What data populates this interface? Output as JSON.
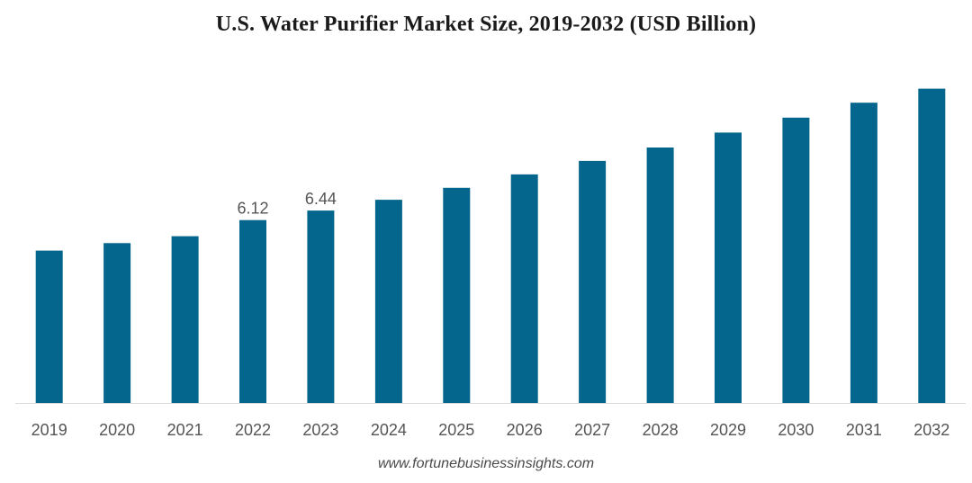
{
  "chart_data": {
    "type": "bar",
    "title": "U.S. Water Purifier Market Size, 2019-2032 (USD Billion)",
    "xlabel": "",
    "ylabel": "",
    "categories": [
      "2019",
      "2020",
      "2021",
      "2022",
      "2023",
      "2024",
      "2025",
      "2026",
      "2027",
      "2028",
      "2029",
      "2030",
      "2031",
      "2032"
    ],
    "values": [
      5.1,
      5.35,
      5.58,
      6.12,
      6.44,
      6.8,
      7.2,
      7.65,
      8.1,
      8.55,
      9.05,
      9.55,
      10.05,
      10.52
    ],
    "data_labels": [
      {
        "category": "2022",
        "text": "6.12"
      },
      {
        "category": "2023",
        "text": "6.44"
      }
    ],
    "ylim": [
      0,
      11.5
    ],
    "bar_color": "#05668d",
    "grid": false,
    "legend": "none"
  },
  "source": "www.fortunebusinessinsights.com"
}
